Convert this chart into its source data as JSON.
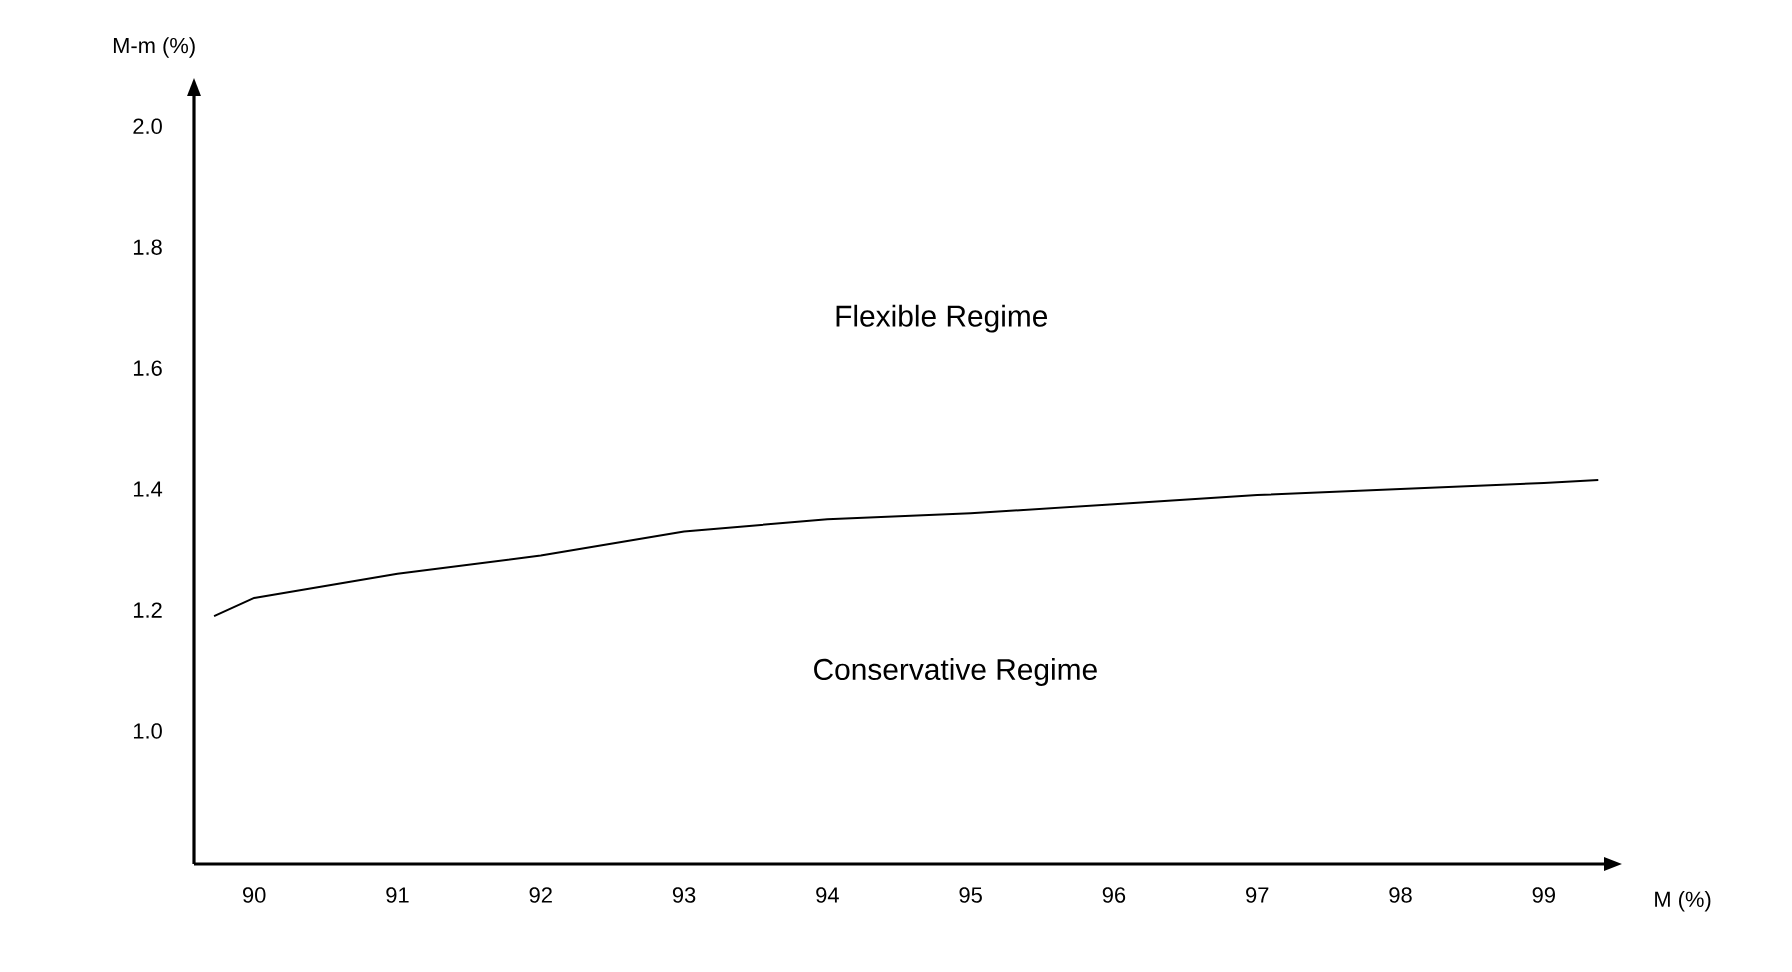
{
  "chart_data": {
    "type": "line",
    "xlabel": "M (%)",
    "ylabel": "M-m (%)",
    "x": [
      89.72,
      90,
      91,
      92,
      93,
      94,
      95,
      96,
      97,
      98,
      99,
      99.38
    ],
    "series": [
      {
        "color": "#000000",
        "values": [
          1.19,
          1.22,
          1.26,
          1.29,
          1.33,
          1.35,
          1.36,
          1.375,
          1.39,
          1.4,
          1.41,
          1.415
        ]
      }
    ],
    "xlim": [
      89.58,
      99.42
    ],
    "ylim": [
      0.78,
      2.05
    ],
    "xticks": [
      90,
      91,
      92,
      93,
      94,
      95,
      96,
      97,
      98,
      99
    ],
    "yticks": [
      {
        "value": 1.0,
        "label": "1.0"
      },
      1.2,
      1.4,
      1.6,
      1.8,
      {
        "value": 2.0,
        "label": "2.0"
      }
    ],
    "annotations": [
      "Flexible Regime",
      "Conservative Regime"
    ],
    "grid": false
  }
}
